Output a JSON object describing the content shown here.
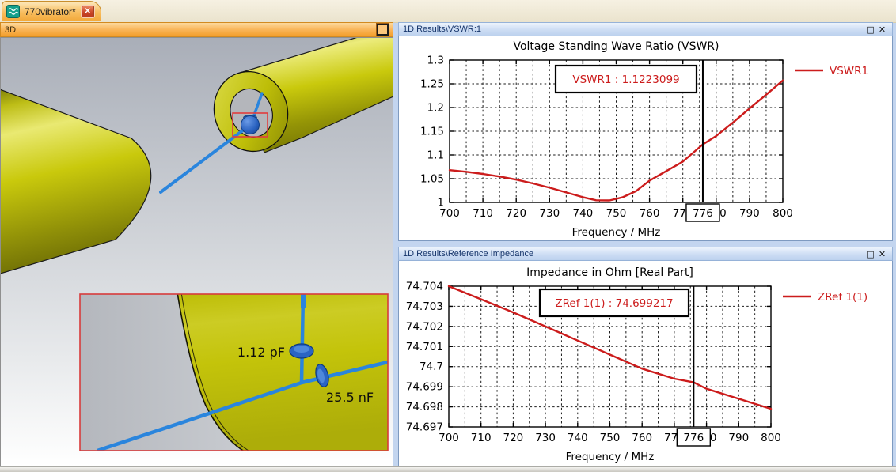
{
  "tab_bar": {
    "tabs": [
      {
        "label": "770vibrator*",
        "icon": "waves-icon",
        "close_glyph": "✕"
      }
    ]
  },
  "window_buttons": {
    "maximize_glyph": "□",
    "close_glyph": "✕"
  },
  "panels": {
    "viewport3d": {
      "header": "3D",
      "label_c1": "1.12 pF",
      "label_c2": "25.5 nF"
    },
    "vswr": {
      "header": "1D Results\\VSWR:1"
    },
    "zref": {
      "header": "1D Results\\Reference Impedance"
    }
  },
  "colors": {
    "curve_red": "#cc1c1c",
    "marker_black": "#000000",
    "model_yellow": "#c2c20a",
    "wire_blue": "#2a85dd",
    "selection_red": "#e23d3d"
  },
  "chart_data": [
    {
      "type": "line",
      "title": "Voltage Standing Wave Ratio (VSWR)",
      "xlabel": "Frequency / MHz",
      "ylabel": "",
      "xlim": [
        700,
        800
      ],
      "ylim": [
        1,
        1.3
      ],
      "x_minor_step": 5,
      "xticks": [
        700,
        710,
        720,
        730,
        740,
        750,
        760,
        770,
        780,
        790,
        800
      ],
      "xtick_labels": [
        "700",
        "710",
        "720",
        "730",
        "740",
        "750",
        "760",
        "770",
        "780",
        "790",
        "800"
      ],
      "yticks": [
        1,
        1.05,
        1.1,
        1.15,
        1.2,
        1.25,
        1.3
      ],
      "ytick_labels": [
        "1",
        "1.05",
        "1.1",
        "1.15",
        "1.2",
        "1.25",
        "1.3"
      ],
      "grid": "dashed",
      "legend_position": "right",
      "series": [
        {
          "name": "VSWR1",
          "color": "#cc1c1c",
          "x": [
            700,
            705,
            710,
            715,
            720,
            725,
            730,
            735,
            740,
            744,
            748,
            752,
            756,
            760,
            765,
            770,
            776,
            780,
            785,
            790,
            795,
            800
          ],
          "y": [
            1.068,
            1.0645,
            1.06,
            1.0545,
            1.048,
            1.04,
            1.031,
            1.021,
            1.011,
            1.0045,
            1.0042,
            1.011,
            1.024,
            1.046,
            1.066,
            1.086,
            1.1223,
            1.14,
            1.168,
            1.198,
            1.227,
            1.257
          ]
        }
      ],
      "marker": {
        "x": 776,
        "box_label": "776",
        "readout": "VSWR1 : 1.1223099"
      }
    },
    {
      "type": "line",
      "title": "Impedance in Ohm [Real Part]",
      "xlabel": "Frequency / MHz",
      "ylabel": "",
      "xlim": [
        700,
        800
      ],
      "ylim": [
        74.697,
        74.704
      ],
      "x_minor_step": 5,
      "xticks": [
        700,
        710,
        720,
        730,
        740,
        750,
        760,
        770,
        780,
        790,
        800
      ],
      "xtick_labels": [
        "700",
        "710",
        "720",
        "730",
        "740",
        "750",
        "760",
        "770",
        "780",
        "790",
        "800"
      ],
      "yticks": [
        74.697,
        74.698,
        74.699,
        74.7,
        74.701,
        74.702,
        74.703,
        74.704
      ],
      "ytick_labels": [
        "74.697",
        "74.698",
        "74.699",
        "74.7",
        "74.701",
        "74.702",
        "74.703",
        "74.704"
      ],
      "grid": "dashed",
      "legend_position": "right",
      "series": [
        {
          "name": "ZRef 1(1)",
          "color": "#cc1c1c",
          "x": [
            700,
            710,
            720,
            730,
            740,
            750,
            760,
            770,
            776,
            780,
            790,
            800
          ],
          "y": [
            74.704,
            74.70335,
            74.7027,
            74.702,
            74.7013,
            74.7006,
            74.6999,
            74.6994,
            74.699217,
            74.6989,
            74.6984,
            74.6979
          ]
        }
      ],
      "marker": {
        "x": 776,
        "box_label": "776",
        "readout": "ZRef 1(1) : 74.699217"
      }
    }
  ]
}
